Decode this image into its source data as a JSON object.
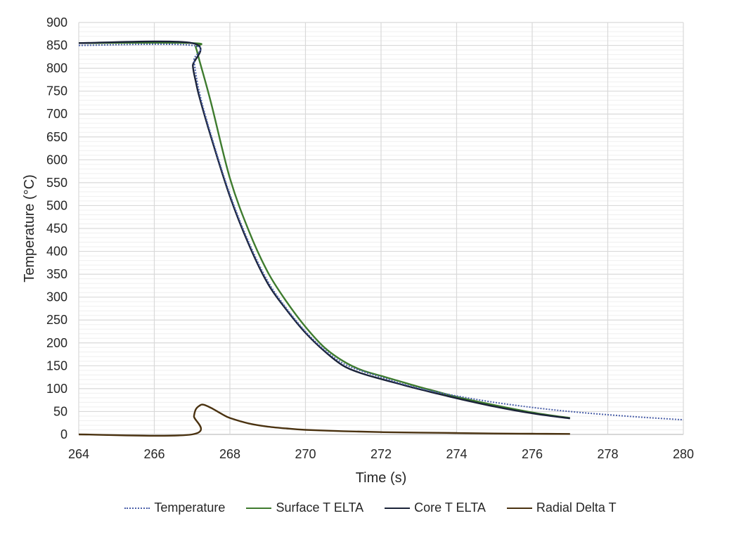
{
  "chart_data": {
    "type": "line",
    "title": "",
    "xlabel": "Time (s)",
    "ylabel": "Temperature (°C)",
    "xlim": [
      264,
      280
    ],
    "ylim": [
      0,
      900
    ],
    "x_ticks": [
      264,
      266,
      268,
      270,
      272,
      274,
      276,
      278,
      280
    ],
    "y_ticks": [
      0,
      50,
      100,
      150,
      200,
      250,
      300,
      350,
      400,
      450,
      500,
      550,
      600,
      650,
      700,
      750,
      800,
      850,
      900
    ],
    "y_minor_step": 10,
    "grid": true,
    "legend_position": "bottom",
    "series": [
      {
        "name": "Temperature",
        "color": "#4A5FA8",
        "style": "dotted",
        "x": [
          264,
          267.0,
          267.05,
          267.2,
          267.5,
          268.0,
          268.5,
          269.0,
          269.5,
          270.0,
          270.5,
          271.0,
          271.5,
          272.0,
          272.5,
          273.0,
          273.5,
          274.0,
          275.0,
          276.0,
          277.0,
          278.0,
          279.0,
          280.0
        ],
        "y": [
          850,
          850,
          815,
          745,
          655,
          525,
          420,
          335,
          275,
          225,
          185,
          155,
          138,
          125,
          112,
          101,
          92,
          84,
          70,
          59,
          50,
          43,
          37,
          32
        ]
      },
      {
        "name": "Surface T ELTA",
        "color": "#3E7B2E",
        "style": "solid",
        "x": [
          264,
          267.0,
          267.1,
          267.2,
          267.5,
          268.0,
          268.5,
          269.0,
          269.5,
          270.0,
          270.5,
          271.0,
          271.5,
          272.0,
          272.5,
          273.0,
          273.5,
          274.0,
          275.0,
          276.0,
          277.0
        ],
        "y": [
          855,
          855,
          845,
          815,
          725,
          560,
          445,
          355,
          290,
          235,
          190,
          160,
          140,
          128,
          116,
          104,
          93,
          82,
          64,
          48,
          36
        ]
      },
      {
        "name": "Core T ELTA",
        "color": "#1A2238",
        "style": "solid",
        "x": [
          264,
          267.0,
          267.02,
          267.1,
          267.2,
          267.5,
          268.0,
          268.5,
          269.0,
          269.5,
          270.0,
          270.5,
          271.0,
          271.5,
          272.0,
          272.5,
          273.0,
          273.5,
          274.0,
          275.0,
          276.0,
          277.0
        ],
        "y": [
          855,
          855,
          805,
          770,
          735,
          650,
          520,
          415,
          330,
          272,
          222,
          182,
          150,
          133,
          121,
          110,
          99,
          89,
          79,
          61,
          46,
          35
        ]
      },
      {
        "name": "Radial Delta T",
        "color": "#4A3210",
        "style": "solid",
        "x": [
          264,
          267.0,
          267.05,
          267.1,
          267.2,
          267.3,
          267.5,
          267.8,
          268.0,
          268.5,
          269.0,
          269.5,
          270.0,
          271.0,
          272.0,
          273.0,
          274.0,
          275.0,
          276.0,
          277.0
        ],
        "y": [
          0,
          0,
          40,
          55,
          63,
          65,
          58,
          44,
          36,
          24,
          17,
          13,
          10,
          7,
          5,
          4,
          3,
          2,
          1.5,
          1
        ]
      }
    ]
  },
  "legend": {
    "items": [
      {
        "label": "Temperature",
        "color": "#4A5FA8",
        "style": "dotted"
      },
      {
        "label": "Surface T ELTA",
        "color": "#3E7B2E",
        "style": "solid"
      },
      {
        "label": "Core T ELTA",
        "color": "#1A2238",
        "style": "solid"
      },
      {
        "label": "Radial Delta T",
        "color": "#4A3210",
        "style": "solid"
      }
    ]
  },
  "colors": {
    "major_grid": "#D9D9D9",
    "minor_grid": "#EFEFEF",
    "axis": "#BFBFBF",
    "text": "#262626"
  }
}
